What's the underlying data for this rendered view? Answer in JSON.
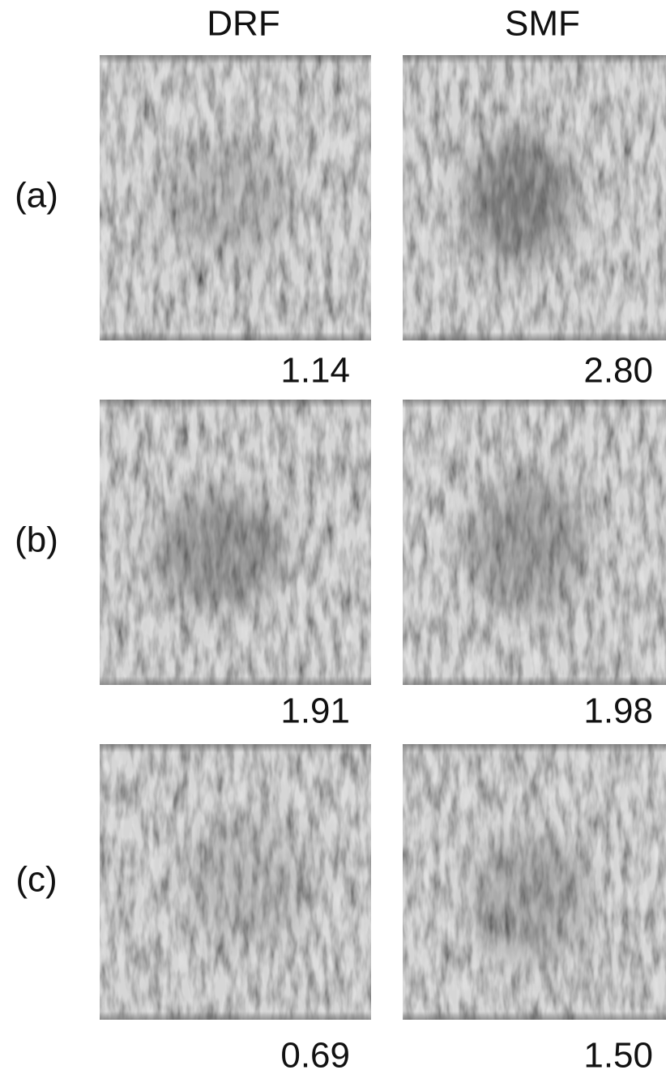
{
  "columns": [
    "DRF",
    "SMF"
  ],
  "rows": [
    {
      "label": "(a)",
      "values": [
        "1.14",
        "2.80"
      ]
    },
    {
      "label": "(b)",
      "values": [
        "1.91",
        "1.98"
      ]
    },
    {
      "label": "(c)",
      "values": [
        "0.69",
        "1.50"
      ]
    }
  ]
}
